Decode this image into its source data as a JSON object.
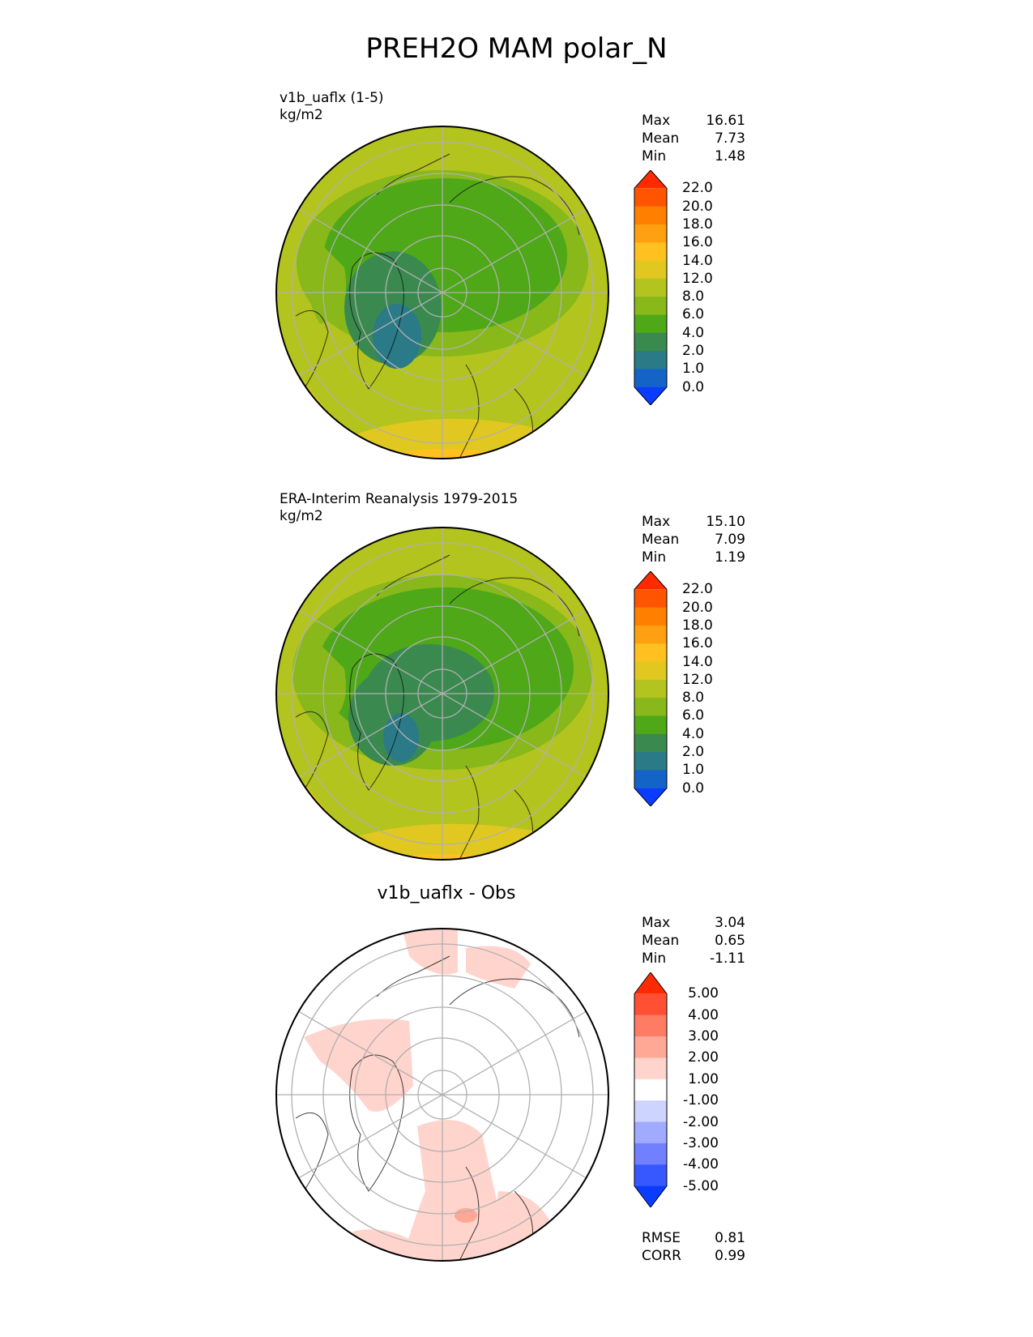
{
  "title": "PREH2O MAM polar_N",
  "panels": [
    {
      "name": "model",
      "label_line1": "v1b_uaflx (1-5)",
      "label_line2": "kg/m2",
      "stats": [
        [
          "Max",
          "16.61"
        ],
        [
          "Mean",
          "7.73"
        ],
        [
          "Min",
          "1.48"
        ]
      ],
      "colorbar": {
        "labels": [
          "22.0",
          "20.0",
          "18.0",
          "16.0",
          "14.0",
          "12.0",
          "8.0",
          "6.0",
          "4.0",
          "2.0",
          "1.0",
          "0.0"
        ],
        "colors": [
          "#ff2a00",
          "#ff5500",
          "#ff7f00",
          "#ffa010",
          "#ffc020",
          "#e0c820",
          "#b4c41e",
          "#88b81a",
          "#4ea818",
          "#3a8a50",
          "#2a7a88",
          "#1464c8",
          "#0a3cff"
        ]
      }
    },
    {
      "name": "obs",
      "label_line1": "ERA-Interim Reanalysis 1979-2015",
      "label_line2": "kg/m2",
      "stats": [
        [
          "Max",
          "15.10"
        ],
        [
          "Mean",
          "7.09"
        ],
        [
          "Min",
          "1.19"
        ]
      ],
      "colorbar": {
        "labels": [
          "22.0",
          "20.0",
          "18.0",
          "16.0",
          "14.0",
          "12.0",
          "8.0",
          "6.0",
          "4.0",
          "2.0",
          "1.0",
          "0.0"
        ],
        "colors": [
          "#ff2a00",
          "#ff5500",
          "#ff7f00",
          "#ffa010",
          "#ffc020",
          "#e0c820",
          "#b4c41e",
          "#88b81a",
          "#4ea818",
          "#3a8a50",
          "#2a7a88",
          "#1464c8",
          "#0a3cff"
        ]
      }
    },
    {
      "name": "diff",
      "title": "v1b_uaflx - Obs",
      "stats": [
        [
          "Max",
          "3.04"
        ],
        [
          "Mean",
          "0.65"
        ],
        [
          "Min",
          "-1.11"
        ]
      ],
      "colorbar": {
        "labels": [
          "5.00",
          "4.00",
          "3.00",
          "2.00",
          "1.00",
          "-1.00",
          "-2.00",
          "-3.00",
          "-4.00",
          "-5.00"
        ],
        "colors": [
          "#ff2a00",
          "#ff5034",
          "#ff7c64",
          "#ffa896",
          "#ffd4cc",
          "#ffffff",
          "#ccd4ff",
          "#a0aaff",
          "#7080ff",
          "#3858ff",
          "#0a3cff"
        ]
      },
      "metrics": [
        [
          "RMSE",
          "0.81"
        ],
        [
          "CORR",
          "0.99"
        ]
      ]
    }
  ],
  "chart_data": {
    "type": "heatmap",
    "projection": "north polar stereographic",
    "title": "PREH2O MAM polar_N",
    "variable": "PREH2O",
    "season": "MAM",
    "maps": [
      {
        "name": "v1b_uaflx (1-5)",
        "units": "kg/m2",
        "max": 16.61,
        "mean": 7.73,
        "min": 1.48
      },
      {
        "name": "ERA-Interim Reanalysis 1979-2015",
        "units": "kg/m2",
        "max": 15.1,
        "mean": 7.09,
        "min": 1.19
      },
      {
        "name": "v1b_uaflx - Obs",
        "max": 3.04,
        "mean": 0.65,
        "min": -1.11,
        "rmse": 0.81,
        "corr": 0.99
      }
    ],
    "levels_abs": [
      0.0,
      1.0,
      2.0,
      4.0,
      6.0,
      8.0,
      12.0,
      14.0,
      16.0,
      18.0,
      20.0,
      22.0
    ],
    "levels_diff": [
      -5.0,
      -4.0,
      -3.0,
      -2.0,
      -1.0,
      1.0,
      2.0,
      3.0,
      4.0,
      5.0
    ]
  }
}
